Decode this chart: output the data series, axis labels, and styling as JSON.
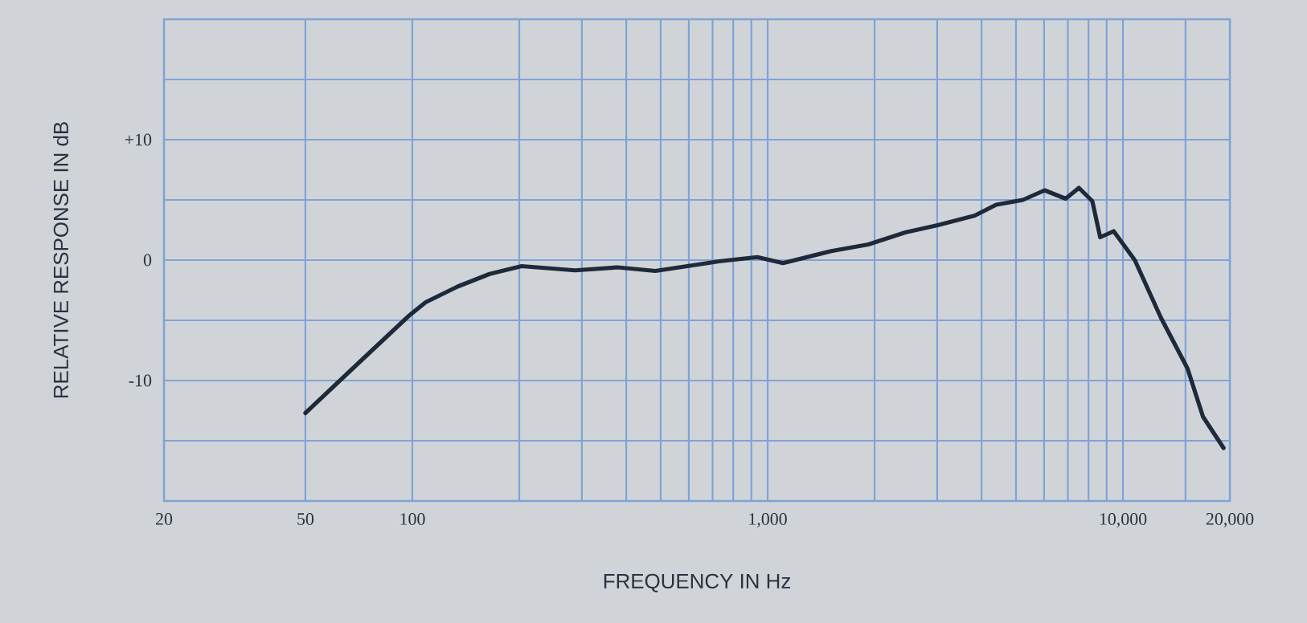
{
  "chart_data": {
    "type": "line",
    "xlabel": "FREQUENCY IN Hz",
    "ylabel": "RELATIVE RESPONSE IN dB",
    "log": "x",
    "grid": true,
    "marker": "none",
    "line_style": "solid",
    "xlim": [
      20,
      20000
    ],
    "ylim": [
      -20,
      20
    ],
    "xticks": [
      {
        "value": 20,
        "label": "20"
      },
      {
        "value": 50,
        "label": "50"
      },
      {
        "value": 100,
        "label": "100"
      },
      {
        "value": 200,
        "label": null
      },
      {
        "value": 300,
        "label": null
      },
      {
        "value": 400,
        "label": null
      },
      {
        "value": 500,
        "label": null
      },
      {
        "value": 600,
        "label": null
      },
      {
        "value": 700,
        "label": null
      },
      {
        "value": 800,
        "label": null
      },
      {
        "value": 900,
        "label": null
      },
      {
        "value": 1000,
        "label": "1,000"
      },
      {
        "value": 2000,
        "label": null
      },
      {
        "value": 3000,
        "label": null
      },
      {
        "value": 4000,
        "label": null
      },
      {
        "value": 5000,
        "label": null
      },
      {
        "value": 6000,
        "label": null
      },
      {
        "value": 7000,
        "label": null
      },
      {
        "value": 8000,
        "label": null
      },
      {
        "value": 9000,
        "label": null
      },
      {
        "value": 10000,
        "label": "10,000"
      },
      {
        "value": 15000,
        "label": null
      },
      {
        "value": 20000,
        "label": "20,000"
      }
    ],
    "yticks": [
      {
        "value": -20,
        "label": null
      },
      {
        "value": -15,
        "label": null
      },
      {
        "value": -10,
        "label": "-10"
      },
      {
        "value": -5,
        "label": null
      },
      {
        "value": 0,
        "label": "0"
      },
      {
        "value": 5,
        "label": null
      },
      {
        "value": 10,
        "label": "+10"
      },
      {
        "value": 15,
        "label": null
      },
      {
        "value": 20,
        "label": null
      }
    ],
    "series": [
      {
        "color": "#1e2a3a",
        "x": [
          50,
          72,
          98,
          109,
          134,
          165,
          203,
          287,
          378,
          483,
          594,
          730,
          935,
          1105,
          1510,
          1920,
          2440,
          3010,
          3830,
          4400,
          5230,
          6020,
          6900,
          7520,
          8200,
          8630,
          9420,
          10800,
          12800,
          15200,
          16800,
          19200
        ],
        "values": [
          -12.7,
          -8.3,
          -4.6,
          -3.5,
          -2.2,
          -1.15,
          -0.5,
          -0.85,
          -0.6,
          -0.9,
          -0.5,
          -0.1,
          0.25,
          -0.25,
          0.75,
          1.3,
          2.3,
          2.9,
          3.7,
          4.6,
          5.0,
          5.8,
          5.1,
          6.0,
          4.9,
          1.9,
          2.4,
          0,
          -4.8,
          -9.0,
          -13.0,
          -15.6
        ]
      }
    ]
  }
}
